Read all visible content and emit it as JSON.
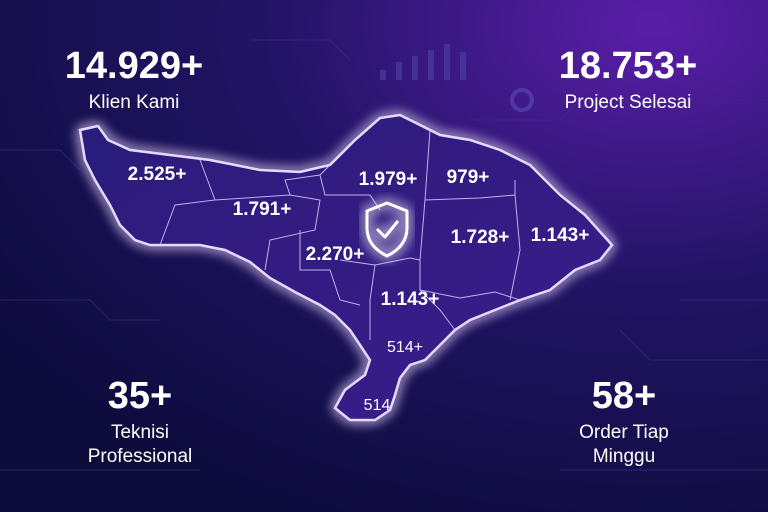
{
  "stats": [
    {
      "value": "14.929+",
      "label": [
        "Klien Kami"
      ]
    },
    {
      "value": "18.753+",
      "label": [
        "Project Selesai"
      ]
    },
    {
      "value": "35+",
      "label": [
        "Teknisi",
        "Professional"
      ]
    },
    {
      "value": "58+",
      "label": [
        "Order Tiap",
        "Minggu"
      ]
    }
  ],
  "regions": [
    {
      "label": "2.525+"
    },
    {
      "label": "1.791+"
    },
    {
      "label": "1.979+"
    },
    {
      "label": "979+"
    },
    {
      "label": "2.270+"
    },
    {
      "label": "1.728+"
    },
    {
      "label": "1.143+"
    },
    {
      "label": "1.143+"
    },
    {
      "label": "514+"
    },
    {
      "label": "514"
    }
  ]
}
